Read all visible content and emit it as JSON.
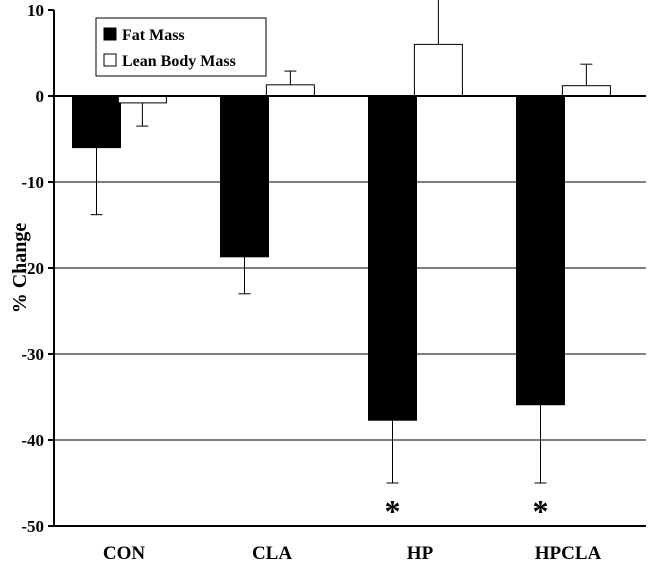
{
  "chart_data": {
    "type": "bar",
    "title": "",
    "xlabel": "",
    "ylabel": "% Change",
    "ylim": [
      -50,
      10
    ],
    "yticks": [
      10,
      0,
      -10,
      -20,
      -30,
      -40,
      -50
    ],
    "grid": true,
    "legend_position": "top-left",
    "categories": [
      "CON",
      "CLA",
      "HP",
      "HPCLA"
    ],
    "series": [
      {
        "name": "Fat Mass",
        "color": "#000000",
        "values": [
          -6.0,
          -18.7,
          -37.7,
          -35.9
        ],
        "error": [
          7.8,
          4.3,
          7.3,
          9.1
        ]
      },
      {
        "name": "Lean Body Mass",
        "color": "#ffffff",
        "values": [
          -0.8,
          1.3,
          6.0,
          1.2
        ],
        "error": [
          2.7,
          1.6,
          7.2,
          2.5
        ]
      }
    ],
    "annotations": [
      {
        "category": "HP",
        "text": "*"
      },
      {
        "category": "HPCLA",
        "text": "*"
      }
    ]
  }
}
